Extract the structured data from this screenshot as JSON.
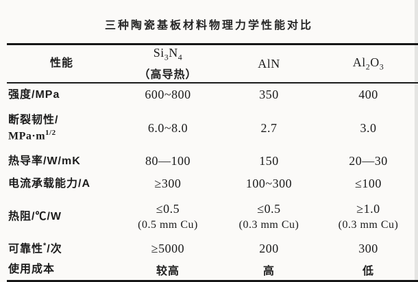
{
  "title": "三种陶瓷基板材料物理力学性能对比",
  "colors": {
    "background": "#fbfaf8",
    "ink": "#1c1c1c",
    "rule": "#161616"
  },
  "table": {
    "header": {
      "col1": "性能",
      "col2": {
        "formula": [
          "Si",
          "3",
          "N",
          "4"
        ],
        "note": "（高导热）"
      },
      "col3": "AlN",
      "col4": {
        "formula": [
          "Al",
          "2",
          "O",
          "3"
        ]
      }
    },
    "rows": [
      {
        "label": "强度/MPa",
        "v1": "600~800",
        "v2": "350",
        "v3": "400"
      },
      {
        "label1": "断裂韧性/",
        "label2_base": "MPa·m",
        "label2_sup": "1/2",
        "v1": "6.0~8.0",
        "v2": "2.7",
        "v3": "3.0"
      },
      {
        "label": "热导率/W/mK",
        "v1": "80—100",
        "v2": "150",
        "v3": "20—30"
      },
      {
        "label": "电流承载能力/A",
        "v1": "≥300",
        "v2": "100~300",
        "v3": "≤100"
      },
      {
        "label": "热阻/℃/W",
        "v1": "≤0.5",
        "v1note": "(0.5 mm Cu)",
        "v2": "≤0.5",
        "v2note": "(0.3 mm Cu)",
        "v3": "≥1.0",
        "v3note": "(0.3 mm Cu)"
      },
      {
        "label_base": "可靠性",
        "label_sup": "*",
        "label_rest": "/次",
        "v1": "≥5000",
        "v2": "200",
        "v3": "300"
      },
      {
        "label": "使用成本",
        "v1": "较高",
        "v2": "高",
        "v3": "低"
      }
    ]
  }
}
